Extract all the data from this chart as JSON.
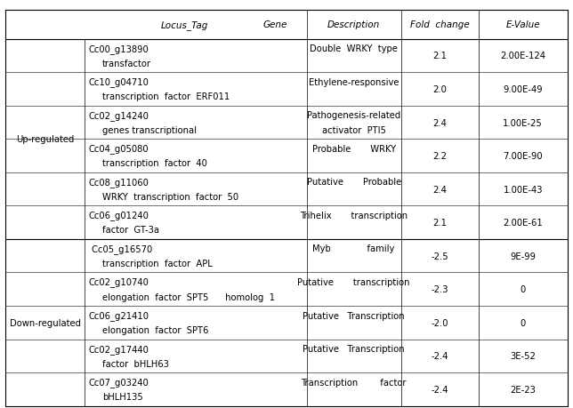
{
  "figsize": [
    6.44,
    4.6
  ],
  "dpi": 100,
  "font_size": 7.2,
  "header_font_size": 7.5,
  "bg_color": "white",
  "line_color": "black",
  "text_color": "black",
  "regulation_groups": [
    {
      "label": "Up-regulated",
      "rows": [
        {
          "locus": "Cc00_g13890",
          "gene2": "transfactor",
          "desc1": "Double  WRKY  type",
          "desc2": "",
          "fold": "2.1",
          "evalue": "2.00E-124"
        },
        {
          "locus": "Cc10_g04710",
          "gene2": "transcription  factor  ERF011",
          "desc1": "Ethylene-responsive",
          "desc2": "",
          "fold": "2.0",
          "evalue": "9.00E-49"
        },
        {
          "locus": "Cc02_g14240",
          "gene2": "genes transcriptional",
          "desc1": "Pathogenesis-related",
          "desc2": "activator  PTI5",
          "fold": "2.4",
          "evalue": "1.00E-25"
        },
        {
          "locus": "Cc04_g05080",
          "gene2": "transcription  factor  40",
          "desc1": "Probable       WRKY",
          "desc2": "",
          "fold": "2.2",
          "evalue": "7.00E-90"
        },
        {
          "locus": "Cc08_g11060",
          "gene2": "WRKY  transcription  factor  50",
          "desc1": "Putative       Probable",
          "desc2": "",
          "fold": "2.4",
          "evalue": "1.00E-43"
        },
        {
          "locus": "Cc06_g01240",
          "gene2": "factor  GT-3a",
          "desc1": "Trihelix       transcription",
          "desc2": "",
          "fold": "2.1",
          "evalue": "2.00E-61"
        }
      ]
    },
    {
      "label": "Down-regulated",
      "rows": [
        {
          "locus": " Cc05_g16570",
          "gene2": "transcription  factor  APL",
          "desc1": "Myb             family",
          "desc2": "",
          "fold": "-2.5",
          "evalue": "9E-99"
        },
        {
          "locus": "Cc02_g10740",
          "gene2": "elongation  factor  SPT5      homolog  1",
          "desc1": "Putative       transcription",
          "desc2": "",
          "fold": "-2.3",
          "evalue": "0"
        },
        {
          "locus": "Cc06_g21410",
          "gene2": "elongation  factor  SPT6",
          "desc1": "Putative   Transcription",
          "desc2": "",
          "fold": "-2.0",
          "evalue": "0"
        },
        {
          "locus": "Cc02_g17440",
          "gene2": "factor  bHLH63",
          "desc1": "Putative   Transcription",
          "desc2": "",
          "fold": "-2.4",
          "evalue": "3E-52"
        },
        {
          "locus": "Cc07_g03240",
          "gene2": "bHLH135",
          "desc1": "Transcription        factor",
          "desc2": "",
          "fold": "-2.4",
          "evalue": "2E-23"
        }
      ]
    }
  ]
}
